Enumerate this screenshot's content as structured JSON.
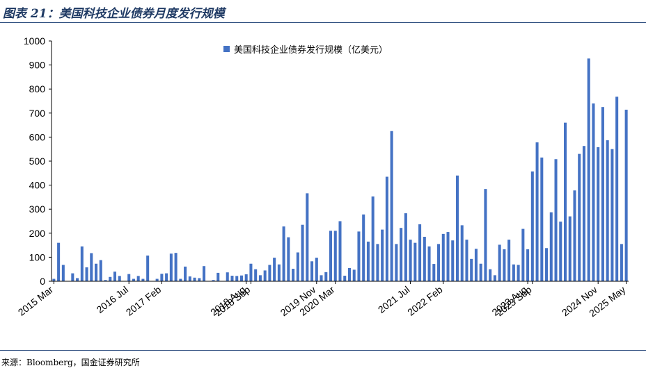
{
  "figure_title": "图表 21：美国科技企业债券月度发行规模",
  "source": "来源：Bloomberg，国金证券研究所",
  "chart_data": {
    "type": "bar",
    "series": [
      {
        "name": "美国科技企业债券发行规模（亿美元）",
        "color": "#4472c4",
        "values": [
          10,
          160,
          68,
          0,
          33,
          13,
          145,
          58,
          117,
          73,
          88,
          5,
          18,
          40,
          22,
          0,
          30,
          10,
          22,
          10,
          107,
          0,
          10,
          31,
          33,
          115,
          118,
          10,
          61,
          20,
          15,
          13,
          63,
          0,
          5,
          35,
          0,
          37,
          23,
          22,
          24,
          29,
          73,
          50,
          25,
          45,
          68,
          98,
          70,
          228,
          183,
          52,
          120,
          235,
          366,
          83,
          98,
          25,
          38,
          210,
          210,
          250,
          23,
          55,
          48,
          207,
          278,
          165,
          353,
          155,
          215,
          435,
          625,
          155,
          222,
          283,
          173,
          160,
          237,
          185,
          145,
          72,
          155,
          197,
          205,
          170,
          440,
          233,
          173,
          93,
          135,
          73,
          384,
          50,
          25,
          152,
          133,
          173,
          70,
          68,
          218,
          133,
          457,
          578,
          515,
          138,
          287,
          508,
          248,
          660,
          270,
          378,
          530,
          563,
          927,
          740,
          558,
          725,
          587,
          550,
          768,
          155,
          714
        ]
      }
    ],
    "x_ticks": [
      {
        "label": "2015 Mar",
        "index": 0
      },
      {
        "label": "2016 Jul",
        "index": 16
      },
      {
        "label": "2017 Feb",
        "index": 23
      },
      {
        "label": "2018 Aug",
        "index": 41
      },
      {
        "label": "2018 Sep",
        "index": 42
      },
      {
        "label": "2019 Nov",
        "index": 56
      },
      {
        "label": "2020 Mar",
        "index": 60
      },
      {
        "label": "2021 Jul",
        "index": 76
      },
      {
        "label": "2022 Feb",
        "index": 83
      },
      {
        "label": "2023 Aug",
        "index": 101
      },
      {
        "label": "2023 Sep",
        "index": 102
      },
      {
        "label": "2024 Nov",
        "index": 116
      },
      {
        "label": "2025 May",
        "index": 122
      }
    ],
    "y_ticks": [
      "0",
      "100",
      "200",
      "300",
      "400",
      "500",
      "600",
      "700",
      "800",
      "900",
      "1000"
    ],
    "ylim": [
      0,
      1000
    ],
    "grid": false,
    "legend_position": "top-center"
  }
}
